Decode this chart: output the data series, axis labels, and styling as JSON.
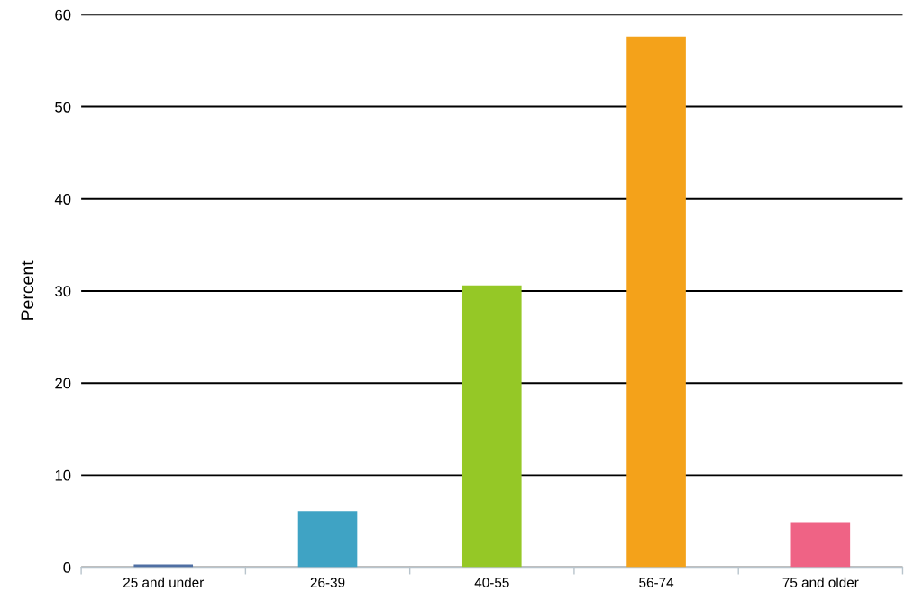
{
  "chart_data": {
    "type": "bar",
    "ylabel": "Percent",
    "categories": [
      "25 and under",
      "26-39",
      "40-55",
      "56-74",
      "75 and older"
    ],
    "values": [
      0.3,
      6.1,
      30.6,
      57.6,
      4.9
    ],
    "colors": [
      "#4f6fa3",
      "#3fa3c4",
      "#95c826",
      "#f4a21a",
      "#ef6385"
    ],
    "ylim": [
      0,
      60
    ],
    "yticks": [
      0,
      10,
      20,
      30,
      40,
      50,
      60
    ],
    "grid": "y",
    "legend": false
  }
}
